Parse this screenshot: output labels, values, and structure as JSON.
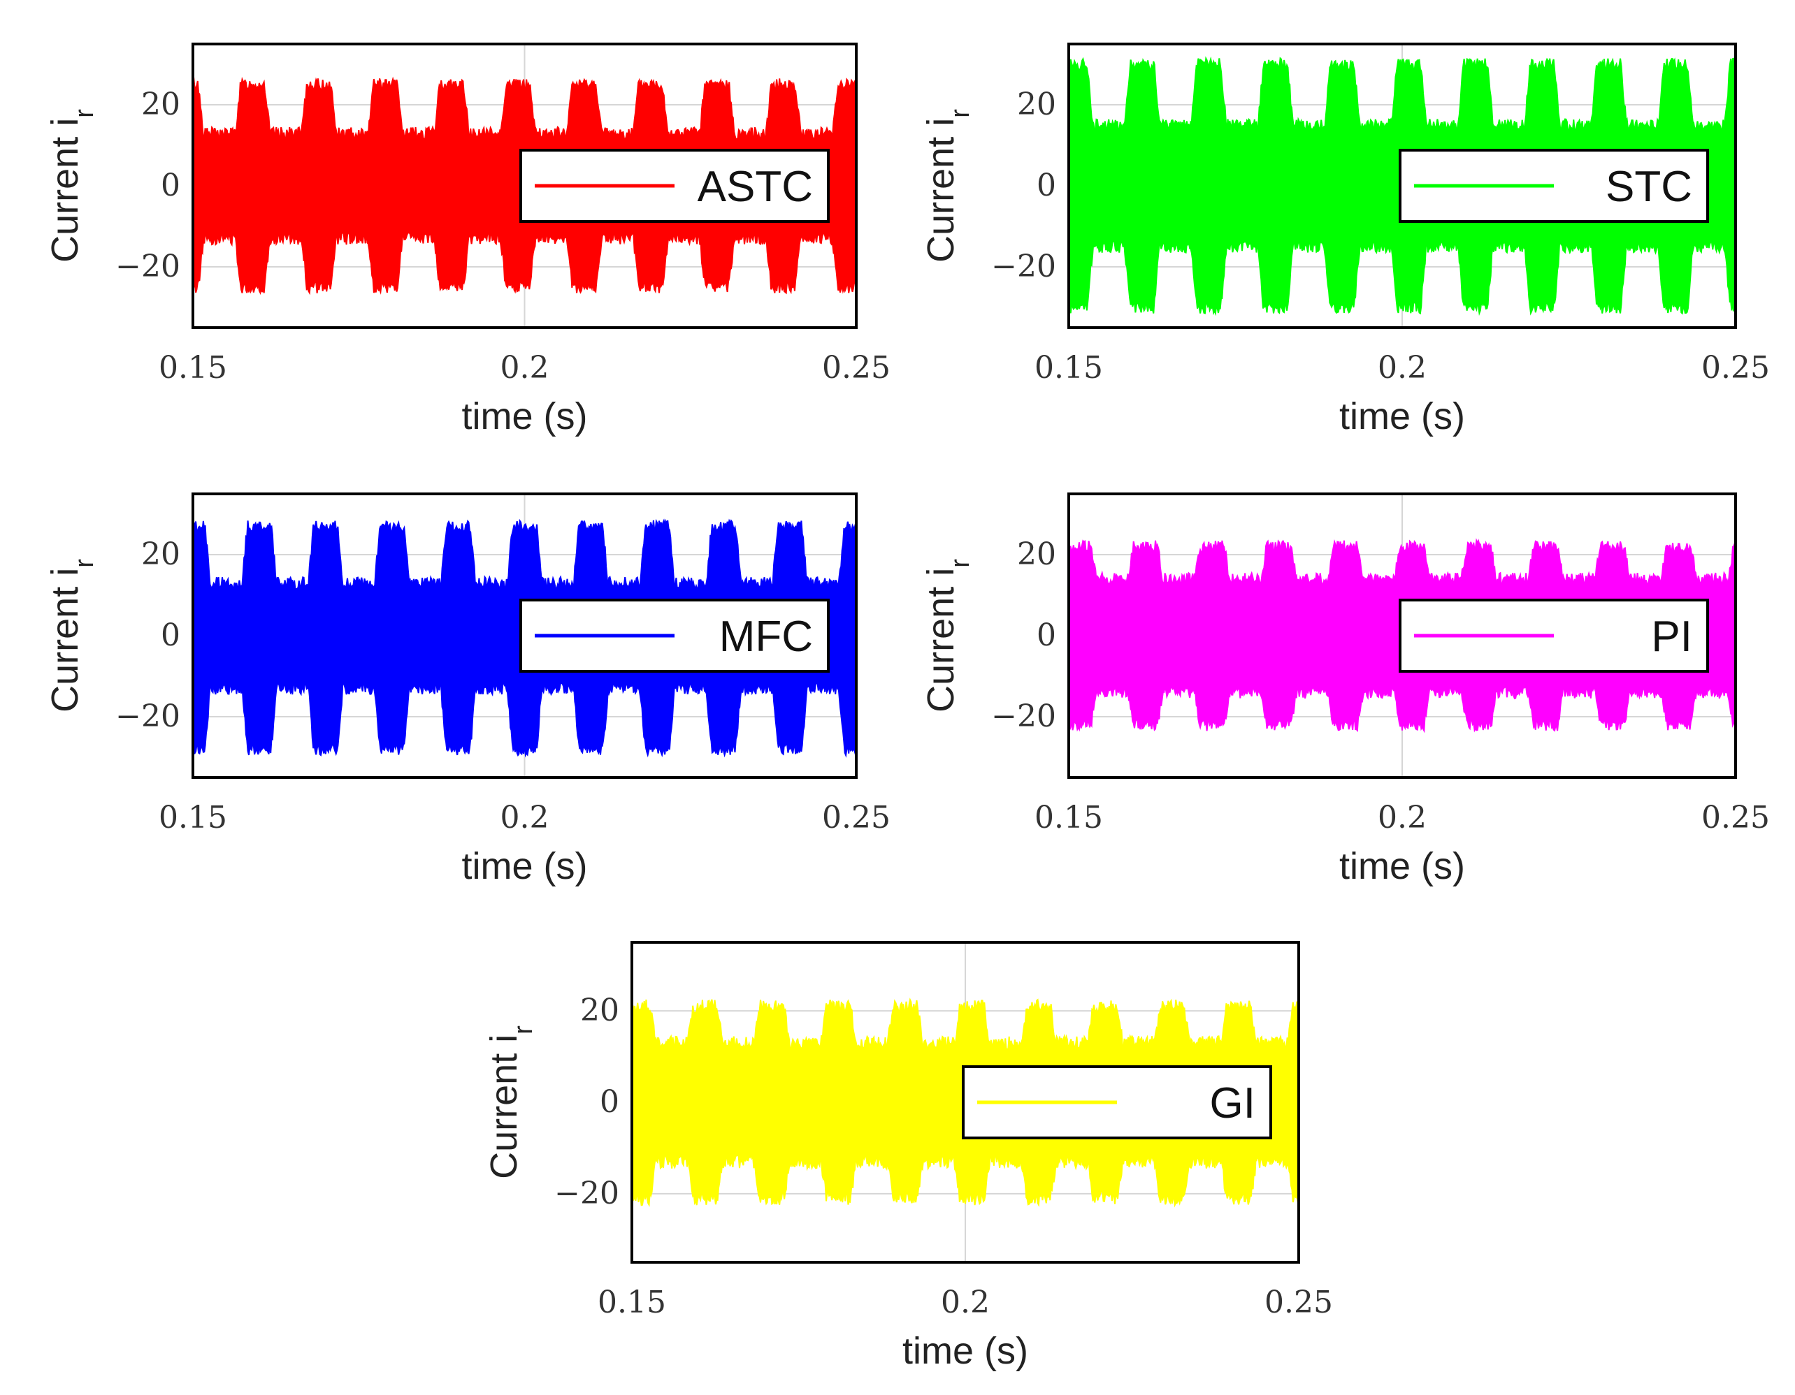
{
  "chart_data": [
    {
      "type": "line",
      "title": "",
      "xlabel": "time (s)",
      "ylabel": "Current i",
      "ylabel_subscript": "r",
      "xlim": [
        0.15,
        0.25
      ],
      "ylim": [
        -35,
        35
      ],
      "xticks": [
        "0.15",
        "0.2",
        "0.25"
      ],
      "yticks": [
        "20",
        "0",
        "−20"
      ],
      "grid": true,
      "legend_position": "right",
      "series": [
        {
          "name": "ASTC",
          "color": "#ff0000",
          "envelope_base": 13,
          "peak_high": 25,
          "peak_low": -25,
          "period": 0.01,
          "peak_center_phase": 0.9
        }
      ]
    },
    {
      "type": "line",
      "title": "",
      "xlabel": "time (s)",
      "ylabel": "Current i",
      "ylabel_subscript": "r",
      "xlim": [
        0.15,
        0.25
      ],
      "ylim": [
        -35,
        35
      ],
      "xticks": [
        "0.15",
        "0.2",
        "0.25"
      ],
      "yticks": [
        "20",
        "0",
        "−20"
      ],
      "grid": true,
      "legend_position": "right",
      "series": [
        {
          "name": "STC",
          "color": "#00ff00",
          "envelope_base": 15,
          "peak_high": 30,
          "peak_low": -30,
          "period": 0.01,
          "peak_center_phase": 0.1
        }
      ]
    },
    {
      "type": "line",
      "title": "",
      "xlabel": "time (s)",
      "ylabel": "Current i",
      "ylabel_subscript": "r",
      "xlim": [
        0.15,
        0.25
      ],
      "ylim": [
        -35,
        35
      ],
      "xticks": [
        "0.15",
        "0.2",
        "0.25"
      ],
      "yticks": [
        "20",
        "0",
        "−20"
      ],
      "grid": true,
      "legend_position": "right",
      "series": [
        {
          "name": "MFC",
          "color": "#0000ff",
          "envelope_base": 13,
          "peak_high": 27,
          "peak_low": -28,
          "period": 0.01,
          "peak_center_phase": 0.0
        }
      ]
    },
    {
      "type": "line",
      "title": "",
      "xlabel": "time (s)",
      "ylabel": "Current i",
      "ylabel_subscript": "r",
      "xlim": [
        0.15,
        0.25
      ],
      "ylim": [
        -35,
        35
      ],
      "xticks": [
        "0.15",
        "0.2",
        "0.25"
      ],
      "yticks": [
        "20",
        "0",
        "−20"
      ],
      "grid": true,
      "legend_position": "right",
      "series": [
        {
          "name": "PI",
          "color": "#ff00ff",
          "envelope_base": 14,
          "peak_high": 22,
          "peak_low": -22,
          "period": 0.01,
          "peak_center_phase": 0.15
        }
      ]
    },
    {
      "type": "line",
      "title": "",
      "xlabel": "time (s)",
      "ylabel": "Current i",
      "ylabel_subscript": "r",
      "xlim": [
        0.15,
        0.25
      ],
      "ylim": [
        -35,
        35
      ],
      "xticks": [
        "0.15",
        "0.2",
        "0.25"
      ],
      "yticks": [
        "20",
        "0",
        "−20"
      ],
      "grid": true,
      "legend_position": "right",
      "series": [
        {
          "name": "GI",
          "color": "#ffff00",
          "envelope_base": 13,
          "peak_high": 21,
          "peak_low": -21,
          "period": 0.01,
          "peak_center_phase": 0.1
        }
      ]
    }
  ]
}
